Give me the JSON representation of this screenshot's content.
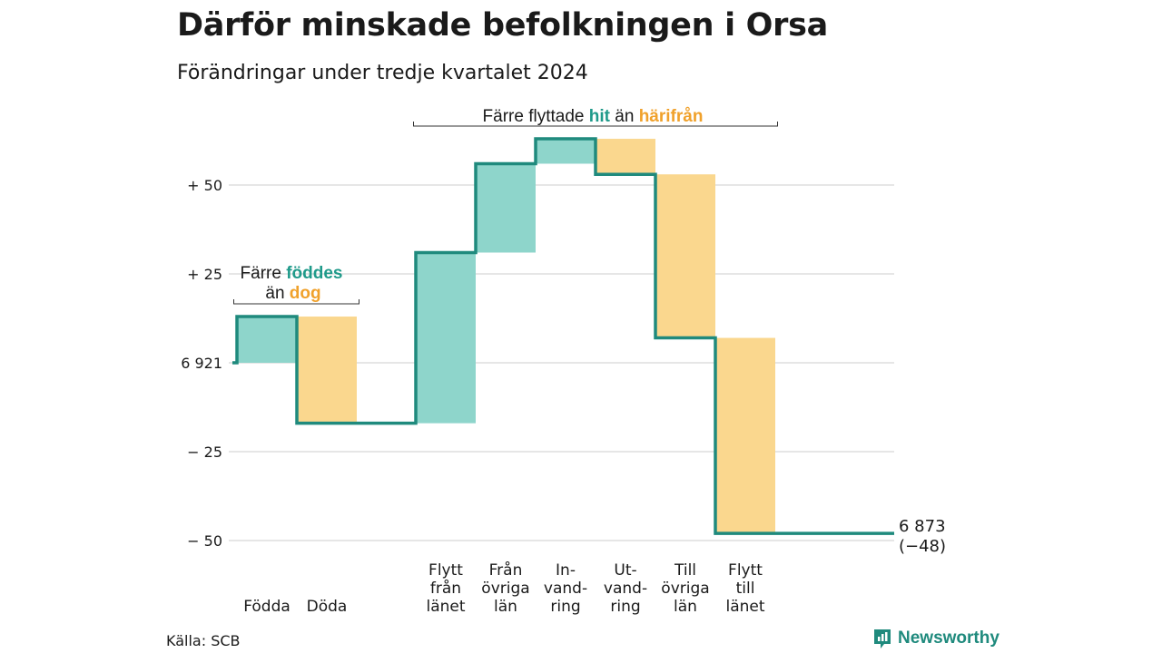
{
  "title": "Därför minskade befolkningen i Orsa",
  "subtitle": "Förändringar under tredje kvartalet 2024",
  "source": "Källa: SCB",
  "brand": "Newsworthy",
  "colors": {
    "increase": "#8ed5cb",
    "decrease": "#fad78e",
    "line": "#1f8a7d",
    "teal_text": "#1f9a8a",
    "orange_text": "#f0a12b",
    "grid": "#dddddd"
  },
  "chart_data": {
    "type": "waterfall",
    "start_value": 6921,
    "end_value": 6873,
    "net_change": -48,
    "ylim": [
      -50,
      65
    ],
    "yticks": [
      {
        "value": 50,
        "label": "+ 50"
      },
      {
        "value": 25,
        "label": "+ 25"
      },
      {
        "value": 0,
        "label": "6 921"
      },
      {
        "value": -25,
        "label": "− 25"
      },
      {
        "value": -50,
        "label": "− 50"
      }
    ],
    "steps": [
      {
        "label": "Födda",
        "change": 13,
        "kind": "in",
        "group": 0
      },
      {
        "label": "Döda",
        "change": -30,
        "kind": "out",
        "group": 0
      },
      {
        "label": "Flytt\nfrån\nlänet",
        "change": 48,
        "kind": "in",
        "group": 1
      },
      {
        "label": "Från\növriga\nlän",
        "change": 25,
        "kind": "in",
        "group": 1
      },
      {
        "label": "In-\nvand-\nring",
        "change": 7,
        "kind": "in",
        "group": 1
      },
      {
        "label": "Ut-\nvand-\nring",
        "change": -10,
        "kind": "out",
        "group": 1
      },
      {
        "label": "Till\növriga\nlän",
        "change": -46,
        "kind": "out",
        "group": 1
      },
      {
        "label": "Flytt\ntill\nlänet",
        "change": -55,
        "kind": "out",
        "group": 1
      }
    ],
    "end_label": {
      "value": "6 873",
      "change": "(−48)"
    },
    "annotations": [
      {
        "parts": [
          {
            "text": "Färre ",
            "style": "plain"
          },
          {
            "text": "föddes",
            "style": "teal"
          }
        ],
        "line2": [
          {
            "text": "än ",
            "style": "plain"
          },
          {
            "text": "dog",
            "style": "orange"
          }
        ]
      },
      {
        "parts": [
          {
            "text": "Färre flyttade ",
            "style": "plain"
          },
          {
            "text": "hit",
            "style": "teal"
          },
          {
            "text": " än ",
            "style": "plain"
          },
          {
            "text": "härifrån",
            "style": "orange"
          }
        ]
      }
    ]
  }
}
